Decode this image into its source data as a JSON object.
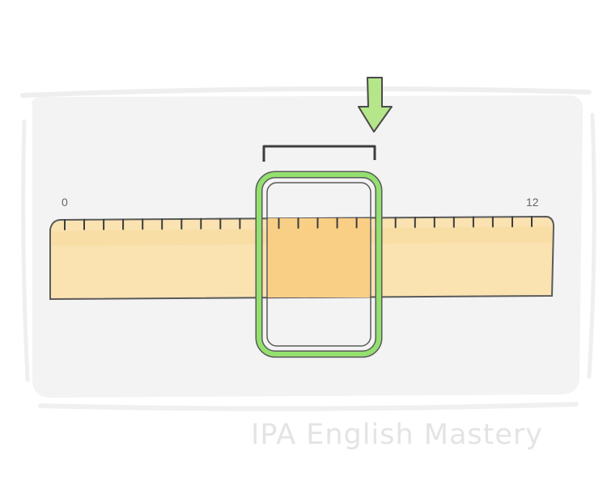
{
  "ruler": {
    "start_label": "0",
    "end_label": "12",
    "total_units": 12,
    "ticks_per_unit": 2
  },
  "highlight": {
    "from_unit": 4.5,
    "to_unit": 7
  },
  "icons": {
    "arrow": "down-arrow-icon",
    "bracket": "measure-bracket",
    "frame": "highlight-frame"
  },
  "colors": {
    "ruler_fill": "#fae3b1",
    "ruler_highlight": "#f9cf86",
    "frame_green": "#93e06f",
    "arrow_green": "#b6e68a",
    "outline": "#555555",
    "card": "#f2f2f2"
  },
  "watermark": "IPA English Mastery"
}
